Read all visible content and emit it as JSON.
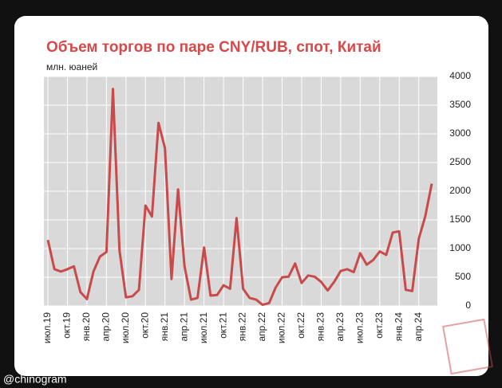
{
  "chart_data": {
    "type": "line",
    "title": "Объем торгов по паре CNY/RUB, спот, Китай",
    "y_label": "млн. юаней",
    "categories": [
      "июл.19",
      null,
      null,
      "окт.19",
      null,
      null,
      "янв.20",
      null,
      null,
      "апр.20",
      null,
      null,
      "июл.20",
      null,
      null,
      "окт.20",
      null,
      null,
      "янв.21",
      null,
      null,
      "апр.21",
      null,
      null,
      "июл.21",
      null,
      null,
      "окт.21",
      null,
      null,
      "янв.22",
      null,
      null,
      "апр.22",
      null,
      null,
      "июл.22",
      null,
      null,
      "окт.22",
      null,
      null,
      "янв.23",
      null,
      null,
      "апр.23",
      null,
      null,
      "июл.23",
      null,
      null,
      "окт.23",
      null,
      null,
      "янв.24",
      null,
      null,
      "апр.24",
      null,
      null
    ],
    "values": [
      1150,
      640,
      600,
      640,
      690,
      240,
      120,
      600,
      860,
      940,
      3780,
      970,
      150,
      170,
      280,
      1750,
      1560,
      3190,
      2750,
      470,
      2030,
      690,
      110,
      140,
      1020,
      180,
      190,
      360,
      300,
      1530,
      300,
      140,
      110,
      20,
      50,
      320,
      500,
      510,
      740,
      400,
      530,
      510,
      420,
      270,
      420,
      610,
      640,
      590,
      920,
      720,
      800,
      950,
      890,
      1280,
      1300,
      280,
      260,
      1170,
      1560,
      2130
    ],
    "color": "#c94a4a",
    "ylim": [
      0,
      4000
    ],
    "yticks": [
      0,
      500,
      1000,
      1500,
      2000,
      2500,
      3000,
      3500,
      4000
    ],
    "grid": true,
    "credit": "@chinogram"
  }
}
